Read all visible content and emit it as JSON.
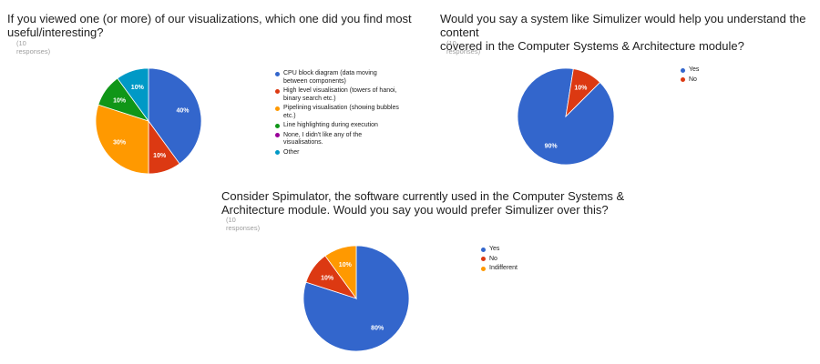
{
  "charts": [
    {
      "title": "If you viewed one (or more) of our visualizations, which one did you find most\nuseful/interesting?",
      "responses": "(10 responses)",
      "chart_data": {
        "type": "pie",
        "slices": [
          {
            "label": "CPU block diagram (data moving between components)",
            "value": 40,
            "color": "#3366cc",
            "value_label": "40%"
          },
          {
            "label": "High level visualisation (towers of hanoi, binary search etc.)",
            "value": 10,
            "color": "#dc3912",
            "value_label": "10%"
          },
          {
            "label": "Pipelining visualisation (showing bubbles etc.)",
            "value": 30,
            "color": "#ff9900",
            "value_label": "30%"
          },
          {
            "label": "Line highlighting during execution",
            "value": 10,
            "color": "#109618",
            "value_label": "10%"
          },
          {
            "label": "None, I didn't like any of the visualisations.",
            "value": 0,
            "color": "#990099",
            "value_label": ""
          },
          {
            "label": "Other",
            "value": 10,
            "color": "#0099c6",
            "value_label": "10%"
          }
        ],
        "legend_position": "right"
      }
    },
    {
      "title": "Would you say a system like Simulizer would help you understand the content\ncovered in the Computer Systems & Architecture module?",
      "responses": "(10 responses)",
      "chart_data": {
        "type": "pie",
        "slices": [
          {
            "label": "Yes",
            "value": 90,
            "color": "#3366cc",
            "value_label": "90%"
          },
          {
            "label": "No",
            "value": 10,
            "color": "#dc3912",
            "value_label": "10%"
          }
        ],
        "legend_position": "right"
      }
    },
    {
      "title": "Consider Spimulator, the software currently used in the Computer Systems &\nArchitecture module. Would you say you would prefer Simulizer over this?",
      "responses": "(10 responses)",
      "chart_data": {
        "type": "pie",
        "slices": [
          {
            "label": "Yes",
            "value": 80,
            "color": "#3366cc",
            "value_label": "80%"
          },
          {
            "label": "No",
            "value": 10,
            "color": "#dc3912",
            "value_label": "10%"
          },
          {
            "label": "Indifferent",
            "value": 10,
            "color": "#ff9900",
            "value_label": "10%"
          }
        ],
        "legend_position": "right"
      }
    }
  ]
}
